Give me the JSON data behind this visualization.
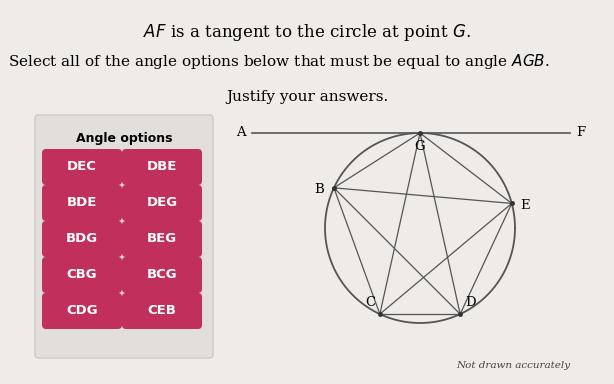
{
  "title1_parts": [
    "$AF$",
    " is a tangent to the circle at point ",
    "$G$",
    "."
  ],
  "title2_parts": [
    "Select all of the angle options below that must be equal to angle ",
    "$AGB$",
    "."
  ],
  "subtitle": "Justify your answers.",
  "angle_options_header": "Angle options",
  "buttons": [
    [
      "DEC",
      "DBE"
    ],
    [
      "BDE",
      "DEG"
    ],
    [
      "BDG",
      "BEG"
    ],
    [
      "CBG",
      "BCG"
    ],
    [
      "CDG",
      "CEB"
    ]
  ],
  "button_color": "#c0305a",
  "button_text_color": "#ffffff",
  "background_color": "#eeebe8",
  "box_bg": "#e2deda",
  "circle_color": "#555555",
  "line_color": "#555555",
  "not_drawn_text": "Not drawn accurately",
  "point_angles": {
    "G": -90,
    "B": 205,
    "C": 115,
    "D": 65,
    "E": -15
  }
}
